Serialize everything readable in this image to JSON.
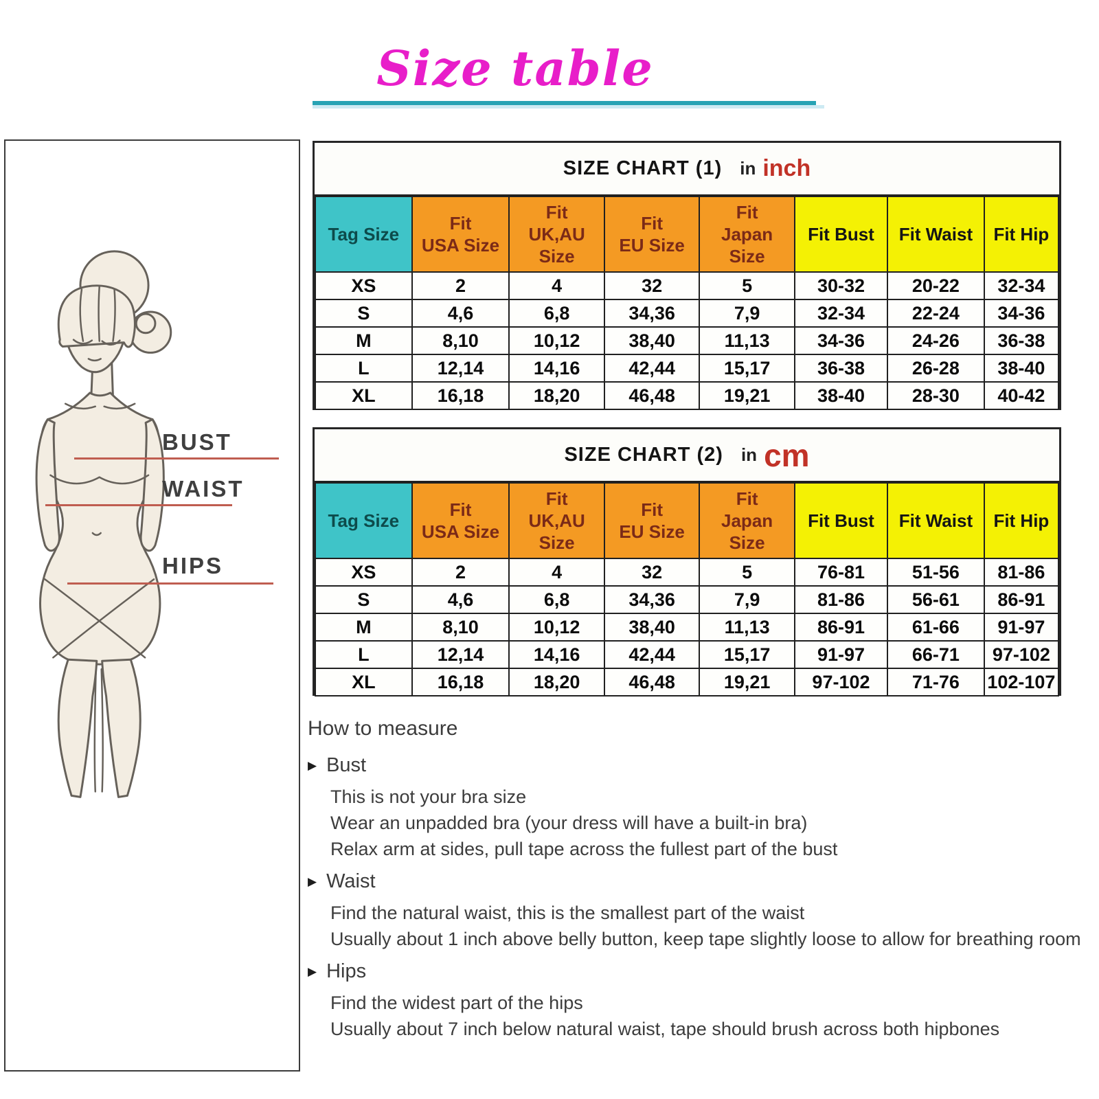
{
  "page": {
    "title": "Size table"
  },
  "figure_panel": {
    "labels": [
      {
        "text": "BUST"
      },
      {
        "text": "WAIST"
      },
      {
        "text": "HIPS"
      }
    ]
  },
  "size_charts": [
    {
      "title": "SIZE CHART (1)",
      "unit_word": "in",
      "unit": "inch",
      "headers": [
        "Tag Size",
        "Fit\nUSA Size",
        "Fit\nUK,AU\nSize",
        "Fit\nEU Size",
        "Fit\nJapan\nSize",
        "Fit Bust",
        "Fit Waist",
        "Fit Hip"
      ],
      "rows": [
        [
          "XS",
          "2",
          "4",
          "32",
          "5",
          "30-32",
          "20-22",
          "32-34"
        ],
        [
          "S",
          "4,6",
          "6,8",
          "34,36",
          "7,9",
          "32-34",
          "22-24",
          "34-36"
        ],
        [
          "M",
          "8,10",
          "10,12",
          "38,40",
          "11,13",
          "34-36",
          "24-26",
          "36-38"
        ],
        [
          "L",
          "12,14",
          "14,16",
          "42,44",
          "15,17",
          "36-38",
          "26-28",
          "38-40"
        ],
        [
          "XL",
          "16,18",
          "18,20",
          "46,48",
          "19,21",
          "38-40",
          "28-30",
          "40-42"
        ]
      ]
    },
    {
      "title": "SIZE CHART (2)",
      "unit_word": "in",
      "unit": "cm",
      "headers": [
        "Tag Size",
        "Fit\nUSA Size",
        "Fit\nUK,AU\nSize",
        "Fit\nEU Size",
        "Fit\nJapan\nSize",
        "Fit Bust",
        "Fit Waist",
        "Fit Hip"
      ],
      "rows": [
        [
          "XS",
          "2",
          "4",
          "32",
          "5",
          "76-81",
          "51-56",
          "81-86"
        ],
        [
          "S",
          "4,6",
          "6,8",
          "34,36",
          "7,9",
          "81-86",
          "56-61",
          "86-91"
        ],
        [
          "M",
          "8,10",
          "10,12",
          "38,40",
          "11,13",
          "86-91",
          "61-66",
          "91-97"
        ],
        [
          "L",
          "12,14",
          "14,16",
          "42,44",
          "15,17",
          "91-97",
          "66-71",
          "97-102"
        ],
        [
          "XL",
          "16,18",
          "18,20",
          "46,48",
          "19,21",
          "97-102",
          "71-76",
          "102-107"
        ]
      ]
    }
  ],
  "how_to_measure": {
    "heading": "How to measure",
    "bullet_icon": "▶",
    "sections": [
      {
        "title": "Bust",
        "lines": [
          "This is not your bra size",
          "Wear an unpadded bra (your dress will have a built-in bra)",
          "Relax arm at sides, pull tape across the fullest part of the bust"
        ]
      },
      {
        "title": "Waist",
        "lines": [
          "Find the natural waist, this is the smallest part of the waist",
          "Usually about 1 inch above belly button, keep tape slightly loose to allow for breathing room"
        ]
      },
      {
        "title": "Hips",
        "lines": [
          "Find the widest part of the hips",
          "Usually about 7 inch below natural waist, tape should brush across both hipbones"
        ]
      }
    ]
  },
  "colors": {
    "magenta_title": "#e81ec9",
    "teal_underline": "#27a3b4",
    "teal_underline_light": "#cdeaf3",
    "tag_header_bg": "#3fc4c8",
    "tag_header_text": "#0d4b4b",
    "fit_header_bg": "#f49a23",
    "fit_header_text": "#7b2a17",
    "measure_header_bg": "#f4f104",
    "unit_red": "#c13227",
    "measure_line_red": "#bf5d50",
    "body_text": "#3c3c3c",
    "table_border": "#202020"
  }
}
